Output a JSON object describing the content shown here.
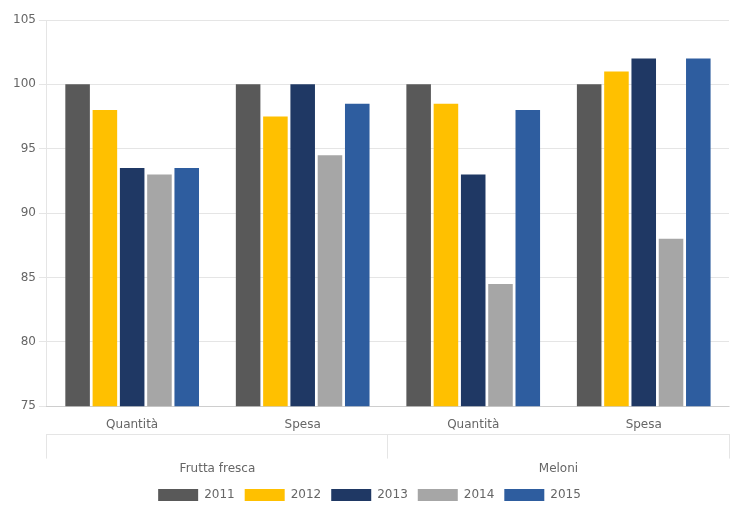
{
  "chart_data": {
    "type": "bar",
    "categories": [
      "Quantità",
      "Spesa",
      "Quantità",
      "Spesa"
    ],
    "sections": [
      "Frutta fresca",
      "Meloni"
    ],
    "series": [
      {
        "name": "2011",
        "color": "#595959",
        "values": [
          100.0,
          100.0,
          100.0,
          100.0
        ]
      },
      {
        "name": "2012",
        "color": "#FFC000",
        "values": [
          98.0,
          97.5,
          98.5,
          101.0
        ]
      },
      {
        "name": "2013",
        "color": "#1F3864",
        "values": [
          93.5,
          100.0,
          93.0,
          102.0
        ]
      },
      {
        "name": "2014",
        "color": "#A6A6A6",
        "values": [
          93.0,
          94.5,
          84.5,
          88.0
        ]
      },
      {
        "name": "2015",
        "color": "#2E5D9F",
        "values": [
          93.5,
          98.5,
          98.0,
          102.0
        ]
      }
    ],
    "ylim": [
      75,
      105
    ],
    "yticks": [
      75,
      80,
      85,
      90,
      95,
      100,
      105
    ],
    "grid": true,
    "legend": "bottom"
  }
}
